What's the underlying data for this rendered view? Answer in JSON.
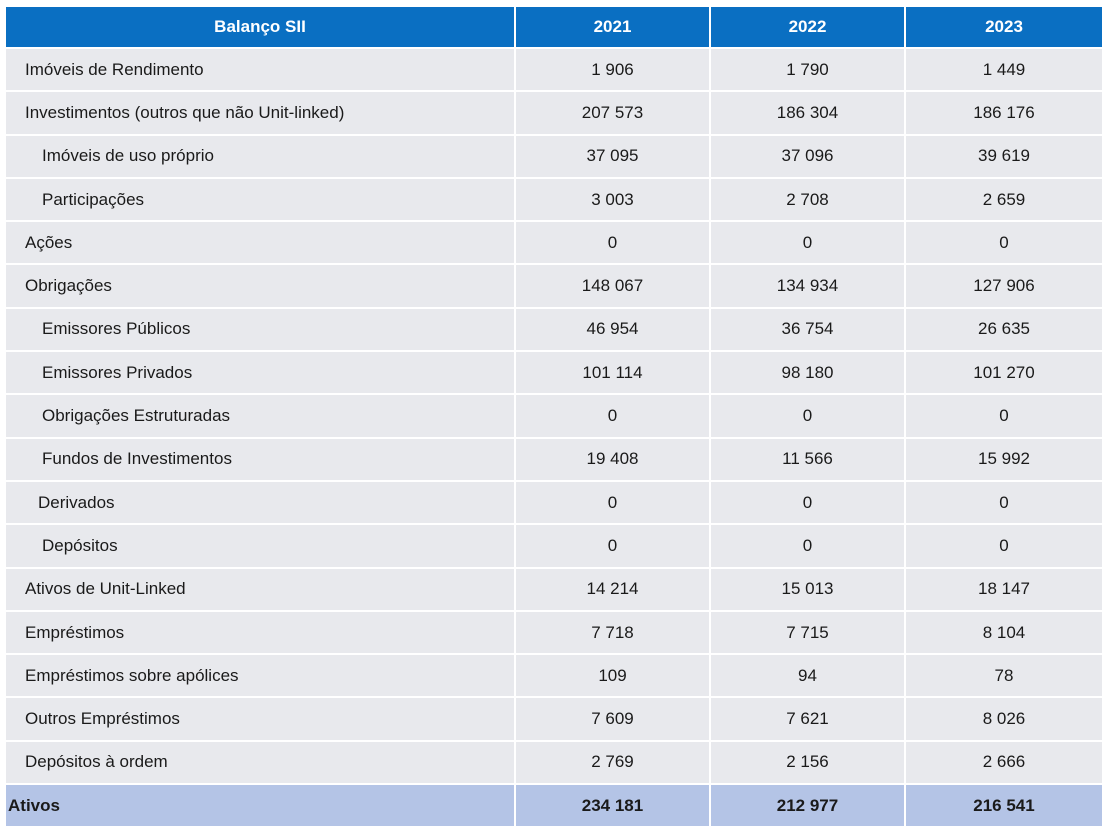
{
  "table": {
    "headers": [
      "Balanço SII",
      "2021",
      "2022",
      "2023"
    ],
    "rows": [
      {
        "label": "Imóveis de Rendimento",
        "values": [
          "1 906",
          "1 790",
          "1 449"
        ]
      },
      {
        "label": "Investimentos (outros que não Unit-linked)",
        "values": [
          "207 573",
          "186 304",
          "186 176"
        ]
      },
      {
        "label": "Imóveis de uso próprio",
        "values": [
          "37 095",
          "37 096",
          "39 619"
        ]
      },
      {
        "label": "Participações",
        "values": [
          "3 003",
          "2 708",
          "2 659"
        ]
      },
      {
        "label": "Ações",
        "values": [
          "0",
          "0",
          "0"
        ]
      },
      {
        "label": "Obrigações",
        "values": [
          "148 067",
          "134 934",
          "127 906"
        ]
      },
      {
        "label": "Emissores Públicos",
        "values": [
          "46 954",
          "36 754",
          "26 635"
        ]
      },
      {
        "label": "Emissores Privados",
        "values": [
          "101 114",
          "98 180",
          "101 270"
        ]
      },
      {
        "label": "Obrigações Estruturadas",
        "values": [
          "0",
          "0",
          "0"
        ]
      },
      {
        "label": "Fundos de Investimentos",
        "values": [
          "19 408",
          "11 566",
          "15 992"
        ]
      },
      {
        "label": "Derivados",
        "values": [
          "0",
          "0",
          "0"
        ]
      },
      {
        "label": "Depósitos",
        "values": [
          "0",
          "0",
          "0"
        ]
      },
      {
        "label": "Ativos de Unit-Linked",
        "values": [
          "14 214",
          "15 013",
          "18 147"
        ]
      },
      {
        "label": "Empréstimos",
        "values": [
          "7 718",
          "7 715",
          "8 104"
        ]
      },
      {
        "label": "Empréstimos sobre apólices",
        "values": [
          "109",
          "94",
          "78"
        ]
      },
      {
        "label": "Outros Empréstimos",
        "values": [
          "7 609",
          "7 621",
          "8 026"
        ]
      },
      {
        "label": "Depósitos à ordem",
        "values": [
          "2 769",
          "2 156",
          "2 666"
        ]
      }
    ],
    "total": {
      "label": "Ativos",
      "values": [
        "234 181",
        "212 977",
        "216 541"
      ]
    }
  },
  "colors": {
    "header_bg": "#0a6fc2",
    "row_bg": "#e8e9ed",
    "total_bg": "#b4c4e6"
  }
}
